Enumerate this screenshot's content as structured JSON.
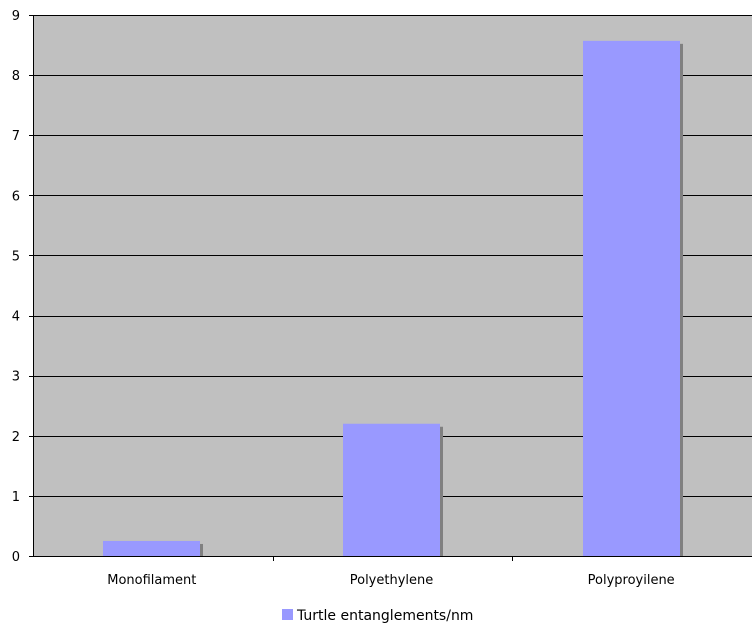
{
  "chart_data": {
    "type": "bar",
    "categories": [
      "Monofilament",
      "Polyethylene",
      "Polyproyilene"
    ],
    "series": [
      {
        "name": "Turtle entanglements/nm",
        "values": [
          0.25,
          2.2,
          8.57
        ],
        "color": "#9999ff"
      }
    ],
    "title": "",
    "xlabel": "",
    "ylabel": "",
    "ylim": [
      0,
      9
    ],
    "yticks": [
      "0",
      "1",
      "2",
      "3",
      "4",
      "5",
      "6",
      "7",
      "8",
      "9"
    ],
    "grid": true,
    "legend": "bottom",
    "plot_background": "#c0c0c0",
    "shadow_color": "#808080"
  }
}
